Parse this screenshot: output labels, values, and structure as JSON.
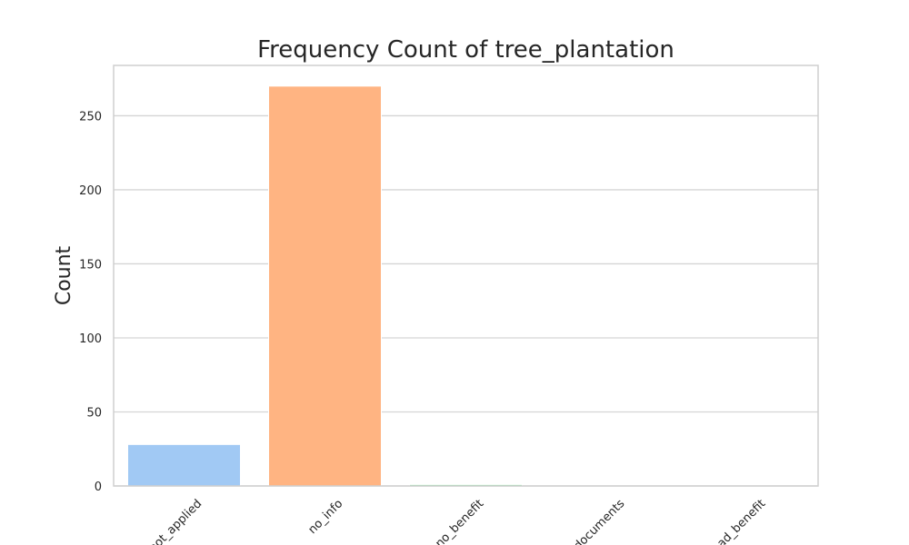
{
  "chart_data": {
    "type": "bar",
    "title": "Frequency Count of tree_plantation",
    "xlabel": "",
    "ylabel": "Count",
    "categories": [
      "not_applied",
      "no_info",
      "no_benefit",
      "documents",
      "had_benefit"
    ],
    "values": [
      28,
      270,
      1,
      0,
      0
    ],
    "ylim": [
      0,
      284
    ],
    "yticks": [
      0,
      50,
      100,
      150,
      200,
      250
    ],
    "grid": true,
    "colors": [
      "#a1c9f4",
      "#ffb482",
      "#8de5a1",
      "#ff9f9b",
      "#d0bbff"
    ]
  }
}
